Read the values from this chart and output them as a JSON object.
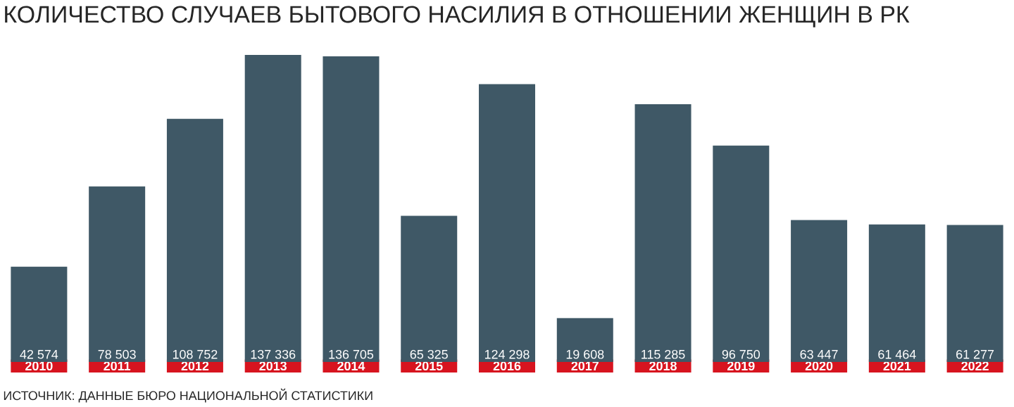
{
  "chart_data": {
    "type": "bar",
    "title": "КОЛИЧЕСТВО СЛУЧАЕВ БЫТОВОГО НАСИЛИЯ В ОТНОШЕНИИ ЖЕНЩИН В РК",
    "categories": [
      "2010",
      "2011",
      "2012",
      "2013",
      "2014",
      "2015",
      "2016",
      "2017",
      "2018",
      "2019",
      "2020",
      "2021",
      "2022"
    ],
    "values": [
      42574,
      78503,
      108752,
      137336,
      136705,
      65325,
      124298,
      19608,
      115285,
      96750,
      63447,
      61464,
      61277
    ],
    "value_labels": [
      "42 574",
      "78 503",
      "108 752",
      "137 336",
      "136 705",
      "65 325",
      "124 298",
      "19 608",
      "115 285",
      "96 750",
      "63 447",
      "61 464",
      "61 277"
    ],
    "color": "#3f5866",
    "annotations": [
      "ИСТОЧНИК: ДАННЫЕ БЮРО НАЦИОНАЛЬНОЙ СТАТИСТИКИ"
    ]
  }
}
